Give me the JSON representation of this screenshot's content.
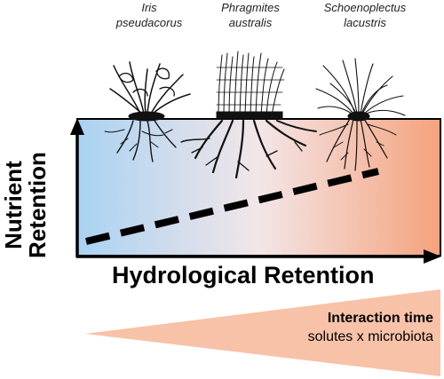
{
  "species": [
    {
      "line1": "Iris",
      "line2": "pseudacorus"
    },
    {
      "line1": "Phragmites",
      "line2": "australis"
    },
    {
      "line1": "Schoenoplectus",
      "line2": "lacustris"
    }
  ],
  "y_axis_label": {
    "line1": "Nutrient",
    "line2": "Retention"
  },
  "x_axis_label": "Hydrological Retention",
  "interaction": {
    "title": "Interaction time",
    "subtitle": "solutes x microbiota"
  },
  "colors": {
    "gradient_start": "#a9d2f2",
    "gradient_end": "#f5a27c",
    "wedge": "#f8c2a8"
  }
}
